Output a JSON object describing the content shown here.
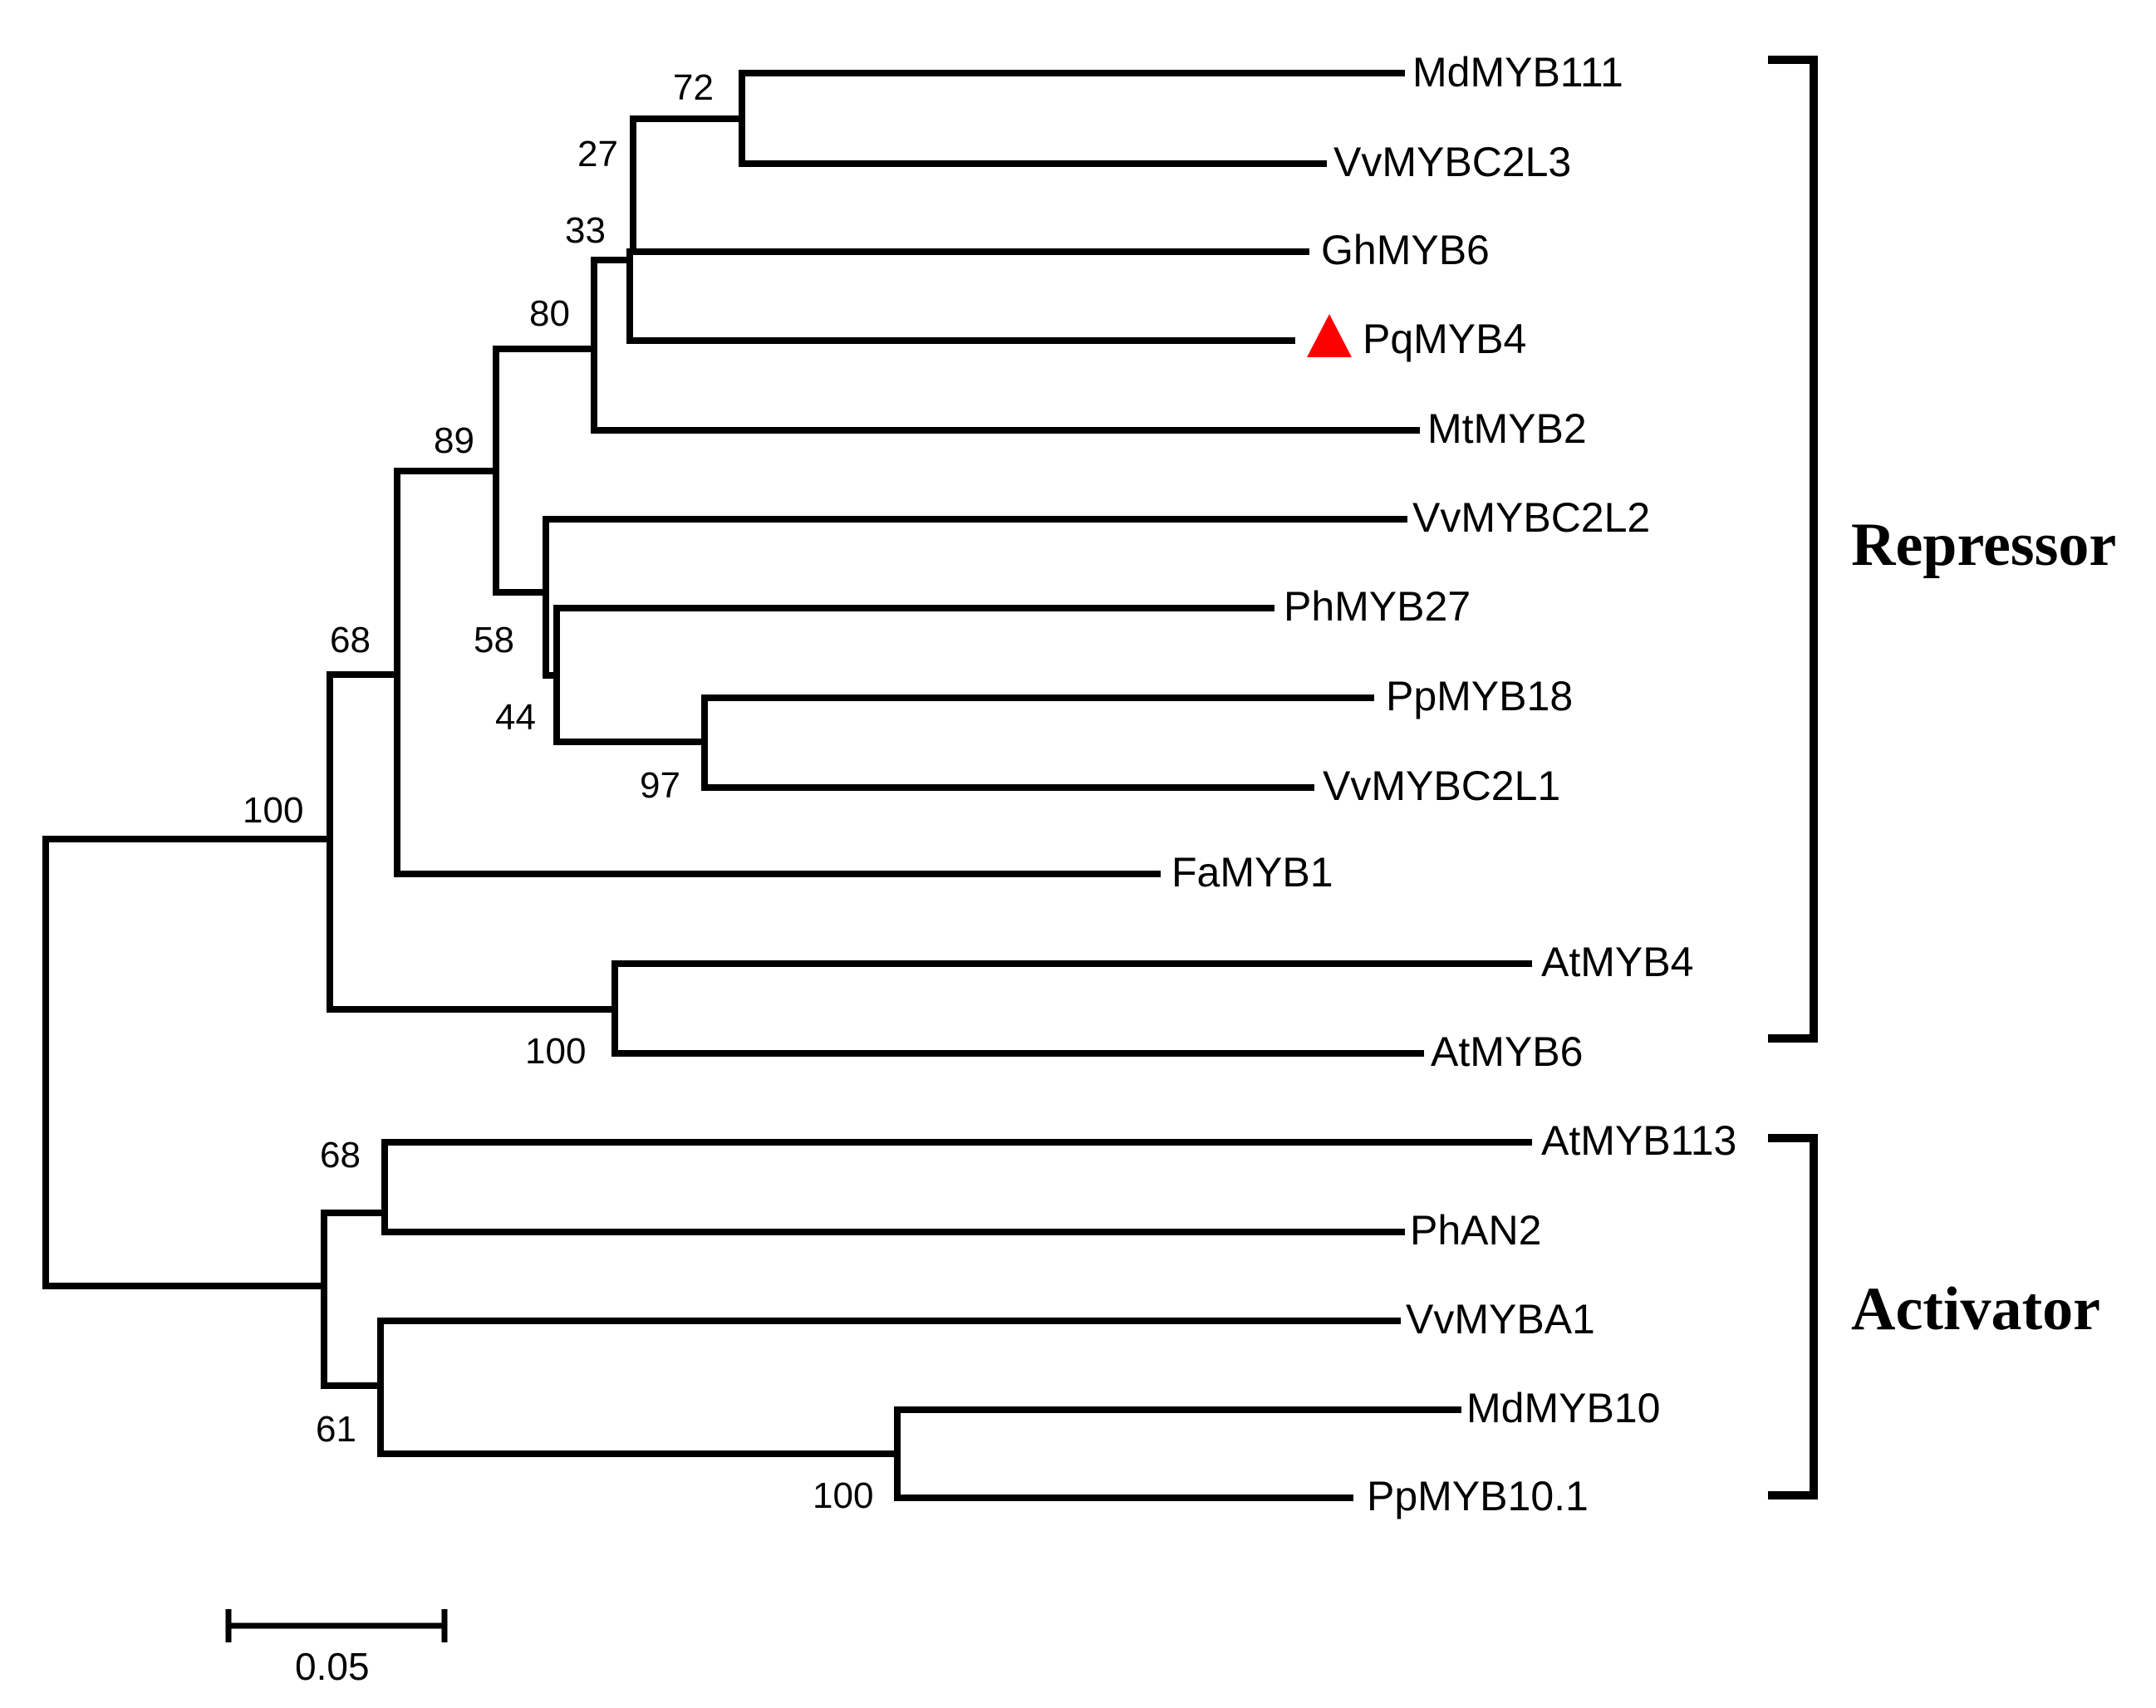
{
  "tree": {
    "leaves": [
      "MdMYB111",
      "VvMYBC2L3",
      "GhMYB6",
      "PqMYB4",
      "MtMYB2",
      "VvMYBC2L2",
      "PhMYB27",
      "PpMYB18",
      "VvMYBC2L1",
      "FaMYB1",
      "AtMYB4",
      "AtMYB6",
      "AtMYB113",
      "PhAN2",
      "VvMYBA1",
      "MdMYB10",
      "PpMYB10.1"
    ],
    "highlighted_leaf": "PqMYB4",
    "highlight_marker": "triangle-icon",
    "highlight_color": "#ff0000",
    "support_values": {
      "MdMYB111_VvMYBC2L3": "72",
      "with_GhMYB6": "27",
      "with_PqMYB4": "33",
      "with_MtMYB2": "80",
      "repressor_core": "89",
      "with_VvMYBC2L2": "58",
      "with_PhMYB27": "44",
      "PpMYB18_VvMYBC2L1": "97",
      "with_FaMYB1": "68",
      "repressor_clade": "100",
      "AtMYB4_AtMYB6": "100",
      "AtMYB113_PhAN2": "68",
      "activator_clade": "61",
      "MdMYB10_PpMYB10.1": "100"
    }
  },
  "groups": [
    {
      "label": "Repressor"
    },
    {
      "label": "Activator"
    }
  ],
  "scale_bar": {
    "label": "0.05",
    "value": 0.05
  },
  "colors": {
    "lines": "#000000",
    "highlight": "#ff0000"
  }
}
